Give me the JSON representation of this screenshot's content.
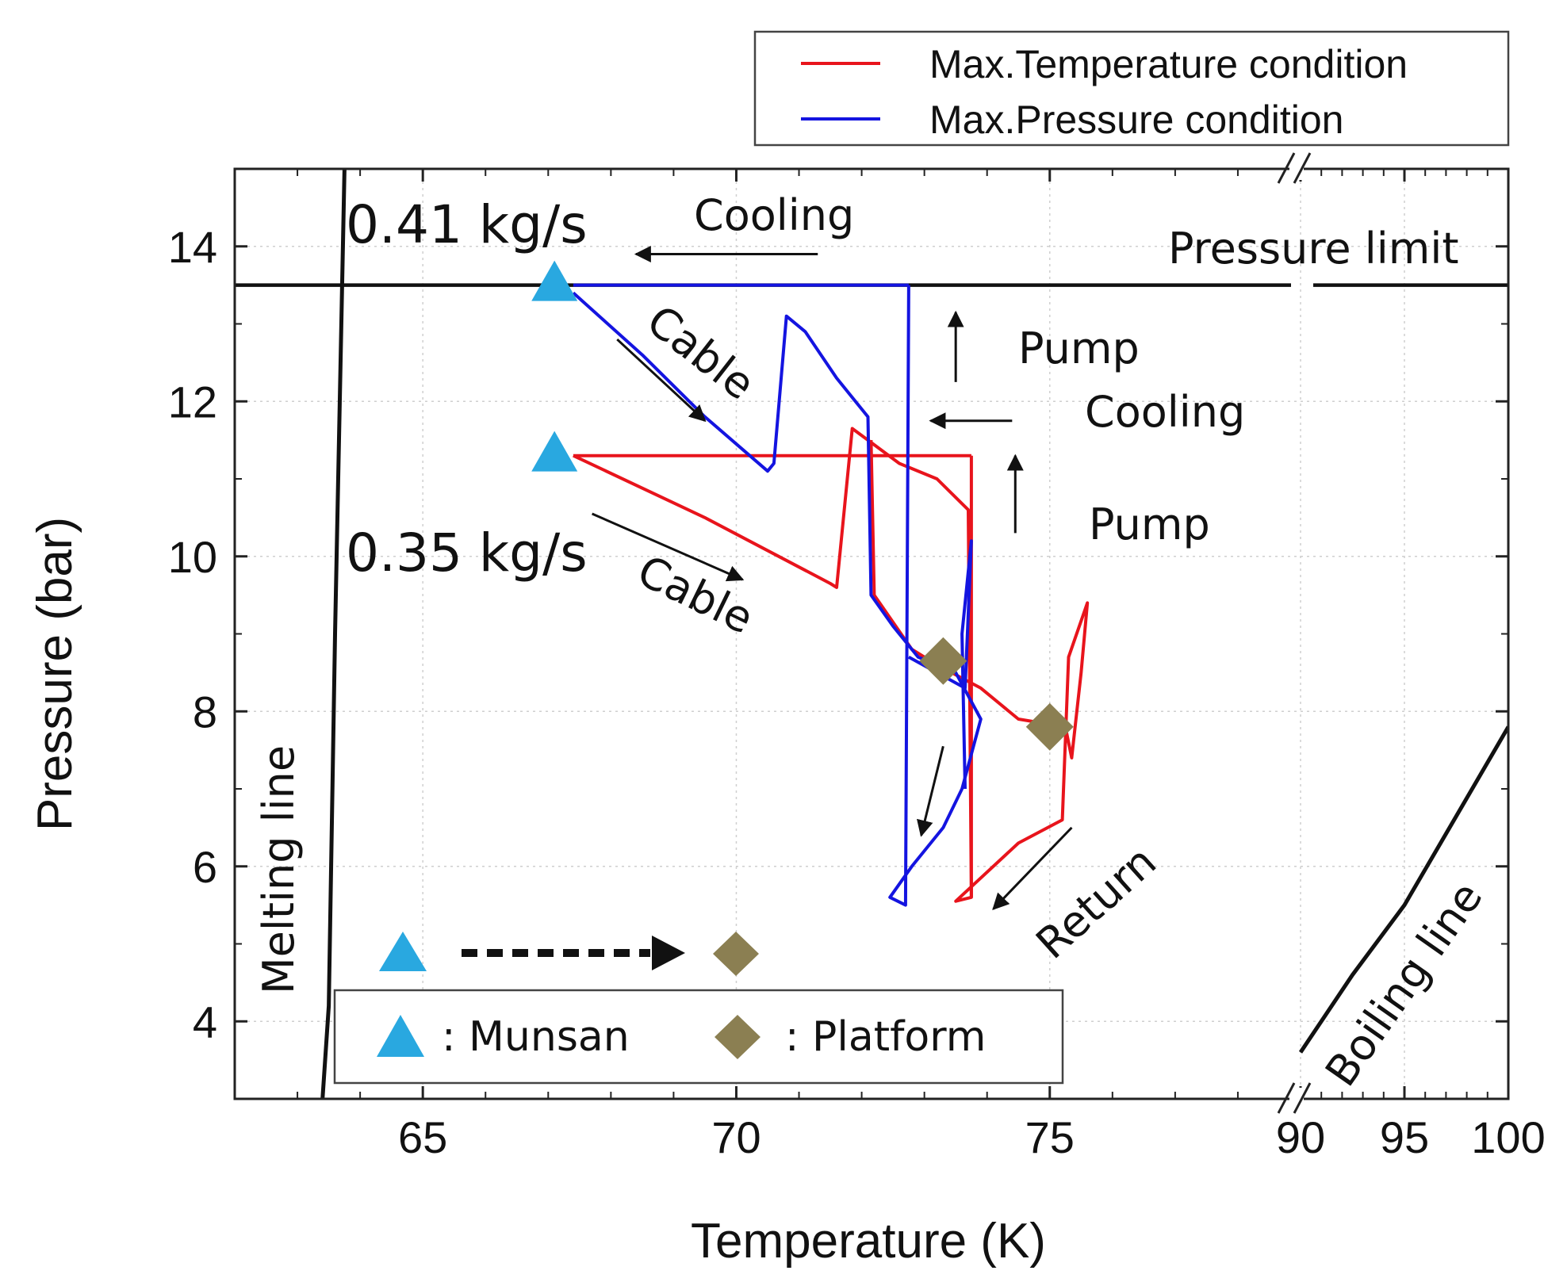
{
  "chart_data": {
    "type": "line",
    "title": "",
    "xlabel": "Temperature (K)",
    "ylabel": "Pressure (bar)",
    "xlim": [
      62,
      100
    ],
    "ylim": [
      3,
      15
    ],
    "x_axis_break": {
      "left_segment": [
        62,
        79
      ],
      "right_segment": [
        90,
        100
      ]
    },
    "x_ticks": [
      {
        "value": 65,
        "label": "65"
      },
      {
        "value": 70,
        "label": "70"
      },
      {
        "value": 75,
        "label": "75"
      },
      {
        "value": 90,
        "label": "90"
      },
      {
        "value": 95,
        "label": "95"
      },
      {
        "value": 100,
        "label": "100"
      }
    ],
    "y_ticks": [
      {
        "value": 4,
        "label": "4"
      },
      {
        "value": 6,
        "label": "6"
      },
      {
        "value": 8,
        "label": "8"
      },
      {
        "value": 10,
        "label": "10"
      },
      {
        "value": 12,
        "label": "12"
      },
      {
        "value": 14,
        "label": "14"
      }
    ],
    "grid": true,
    "series": [
      {
        "name": "Max.Temperature condition",
        "color": "#e8141c",
        "points": [
          [
            67.4,
            11.3
          ],
          [
            69.5,
            10.5
          ],
          [
            71.5,
            9.65
          ],
          [
            71.6,
            9.6
          ],
          [
            71.85,
            11.65
          ],
          [
            72.1,
            11.5
          ],
          [
            72.6,
            11.2
          ],
          [
            73.2,
            11.0
          ],
          [
            73.7,
            10.6
          ],
          [
            73.75,
            5.6
          ],
          [
            73.5,
            5.55
          ],
          [
            74.5,
            6.3
          ],
          [
            75.2,
            6.6
          ],
          [
            75.3,
            8.7
          ],
          [
            75.6,
            9.4
          ],
          [
            75.5,
            8.5
          ],
          [
            75.35,
            7.4
          ],
          [
            75.25,
            7.8
          ],
          [
            74.5,
            7.9
          ],
          [
            73.9,
            8.3
          ],
          [
            73.2,
            8.6
          ],
          [
            72.8,
            8.8
          ],
          [
            72.2,
            9.5
          ],
          [
            72.15,
            11.5
          ]
        ],
        "return_segment": [
          [
            73.75,
            11.3
          ],
          [
            73.75,
            5.6
          ]
        ],
        "top_line": [
          [
            67.4,
            11.3
          ],
          [
            73.75,
            11.3
          ]
        ]
      },
      {
        "name": "Max.Pressure condition",
        "color": "#1414e0",
        "points": [
          [
            67.4,
            13.4
          ],
          [
            68.5,
            12.6
          ],
          [
            69.5,
            11.8
          ],
          [
            70.5,
            11.1
          ],
          [
            70.6,
            11.2
          ],
          [
            70.8,
            13.1
          ],
          [
            71.1,
            12.9
          ],
          [
            71.6,
            12.3
          ],
          [
            72.1,
            11.8
          ],
          [
            72.15,
            9.5
          ],
          [
            72.5,
            9.1
          ],
          [
            72.9,
            8.7
          ],
          [
            73.5,
            8.5
          ],
          [
            73.9,
            7.9
          ],
          [
            73.6,
            7.0
          ],
          [
            73.3,
            6.5
          ],
          [
            72.8,
            6.0
          ],
          [
            72.45,
            5.6
          ],
          [
            72.7,
            5.5
          ],
          [
            72.75,
            13.5
          ]
        ],
        "right_loop": [
          [
            72.75,
            8.7
          ],
          [
            73.65,
            8.3
          ],
          [
            73.75,
            10.2
          ],
          [
            73.6,
            9.0
          ],
          [
            73.65,
            7.0
          ]
        ],
        "top_line": [
          [
            67.4,
            13.5
          ],
          [
            72.75,
            13.5
          ]
        ]
      }
    ],
    "reference_lines": [
      {
        "name": "Pressure limit",
        "y": 13.5
      },
      {
        "name": "Melting line",
        "points": [
          [
            63.4,
            3.0
          ],
          [
            63.5,
            4.2
          ],
          [
            63.6,
            9.0
          ],
          [
            63.75,
            15.0
          ]
        ]
      },
      {
        "name": "Boiling line",
        "points": [
          [
            90.0,
            3.6
          ],
          [
            92.5,
            4.6
          ],
          [
            95.0,
            5.5
          ],
          [
            100.0,
            7.8
          ]
        ]
      }
    ],
    "markers": [
      {
        "name": "Munsan",
        "shape": "triangle",
        "color": "#29a8e0",
        "points": [
          [
            67.1,
            13.5
          ],
          [
            67.1,
            11.3
          ]
        ]
      },
      {
        "name": "Platform",
        "shape": "diamond",
        "color": "#8b7f52",
        "points": [
          [
            73.3,
            8.65
          ],
          [
            75.0,
            7.8
          ]
        ]
      }
    ],
    "annotations": [
      {
        "text": "0.41 kg/s",
        "x": 65.4,
        "y": 14.1
      },
      {
        "text": "0.35 kg/s",
        "x": 65.4,
        "y": 9.85
      },
      {
        "text": "Cooling",
        "x": 70.2,
        "y": 14.25
      },
      {
        "text": "Cooling",
        "x": 76.3,
        "y": 11.7
      },
      {
        "text": "Pump",
        "x": 74.4,
        "y": 12.6
      },
      {
        "text": "Pump",
        "x": 75.0,
        "y": 10.2
      },
      {
        "text": "Cable",
        "x": 69.4,
        "y": 12.45
      },
      {
        "text": "Cable",
        "x": 70.4,
        "y": 9.1
      },
      {
        "text": "Return",
        "x": 75.4,
        "y": 5.0
      },
      {
        "text": "Pressure limit",
        "x": 79.5,
        "y": 13.95
      },
      {
        "text": "Melting line",
        "x": 63.0,
        "y": 6.0
      },
      {
        "text": "Boiling line",
        "x": 96.5,
        "y": 5.0
      }
    ],
    "legend": {
      "position": "top-right",
      "entries": [
        {
          "label": "Max.Temperature condition",
          "color": "#e8141c"
        },
        {
          "label": "Max.Pressure condition",
          "color": "#1414e0"
        }
      ]
    },
    "marker_key": {
      "position": "bottom-left",
      "entries": [
        {
          "symbol": "triangle",
          "label": ": Munsan"
        },
        {
          "symbol": "diamond",
          "label": ": Platform"
        }
      ]
    }
  }
}
